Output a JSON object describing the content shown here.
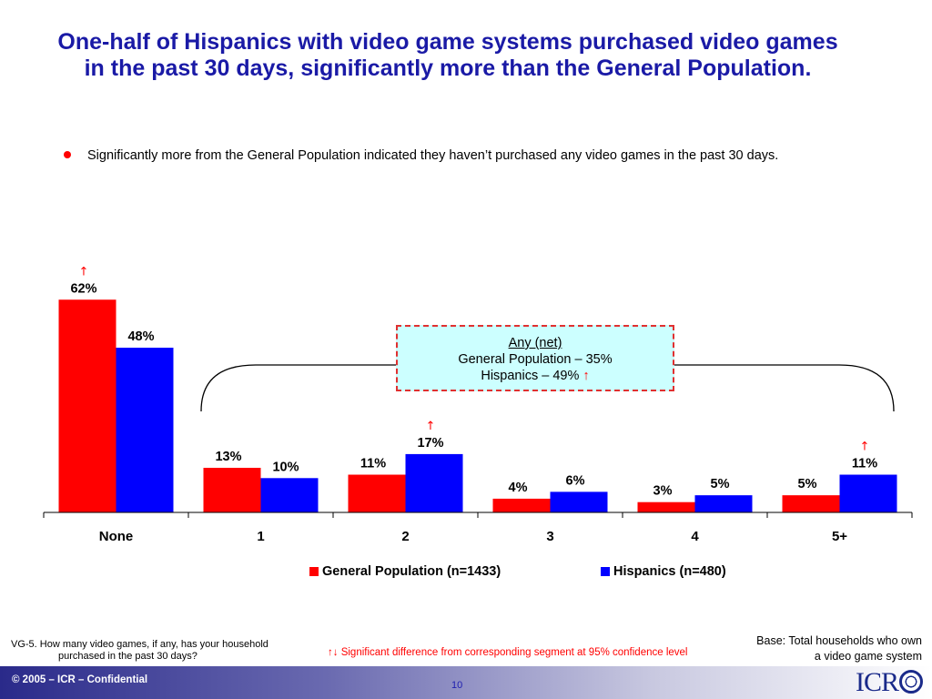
{
  "title": "One-half of Hispanics with video game systems purchased video games in the past 30 days, significantly more than the General Population.",
  "bullet": "Significantly more from the General Population indicated they haven’t purchased any video games in the past 30 days.",
  "callout": {
    "heading": "Any (net)",
    "line1": "General Population – 35%",
    "line2": "Hispanics – 49%",
    "arrow": "↑"
  },
  "chart_data": {
    "type": "bar",
    "categories": [
      "None",
      "1",
      "2",
      "3",
      "4",
      "5+"
    ],
    "series": [
      {
        "name": "General Population (n=1433)",
        "values": [
          62,
          13,
          11,
          4,
          3,
          5
        ],
        "labels": [
          "62%",
          "13%",
          "11%",
          "4%",
          "3%",
          "5%"
        ],
        "sig": [
          true,
          false,
          false,
          false,
          false,
          false
        ],
        "color": "#ff0000"
      },
      {
        "name": "Hispanics (n=480)",
        "values": [
          48,
          10,
          17,
          6,
          5,
          11
        ],
        "labels": [
          "48%",
          "10%",
          "17%",
          "6%",
          "5%",
          "11%"
        ],
        "sig": [
          false,
          false,
          true,
          false,
          false,
          true
        ],
        "color": "#0000ff"
      }
    ],
    "ylim": [
      0,
      70
    ],
    "legend": "bottom",
    "grid": false,
    "sig_arrow": "↑"
  },
  "footnote": {
    "line1": "VG-5.  How many video games, if any, has your household",
    "line2": "purchased in the past 30 days?"
  },
  "significance_note": "↑↓  Significant difference from corresponding segment at 95% confidence level",
  "base": {
    "line1": "Base: Total households who own",
    "line2": "a video game system"
  },
  "footer": {
    "copyright": "© 2005 – ICR – Confidential",
    "page": "10",
    "logo": "ICR"
  }
}
